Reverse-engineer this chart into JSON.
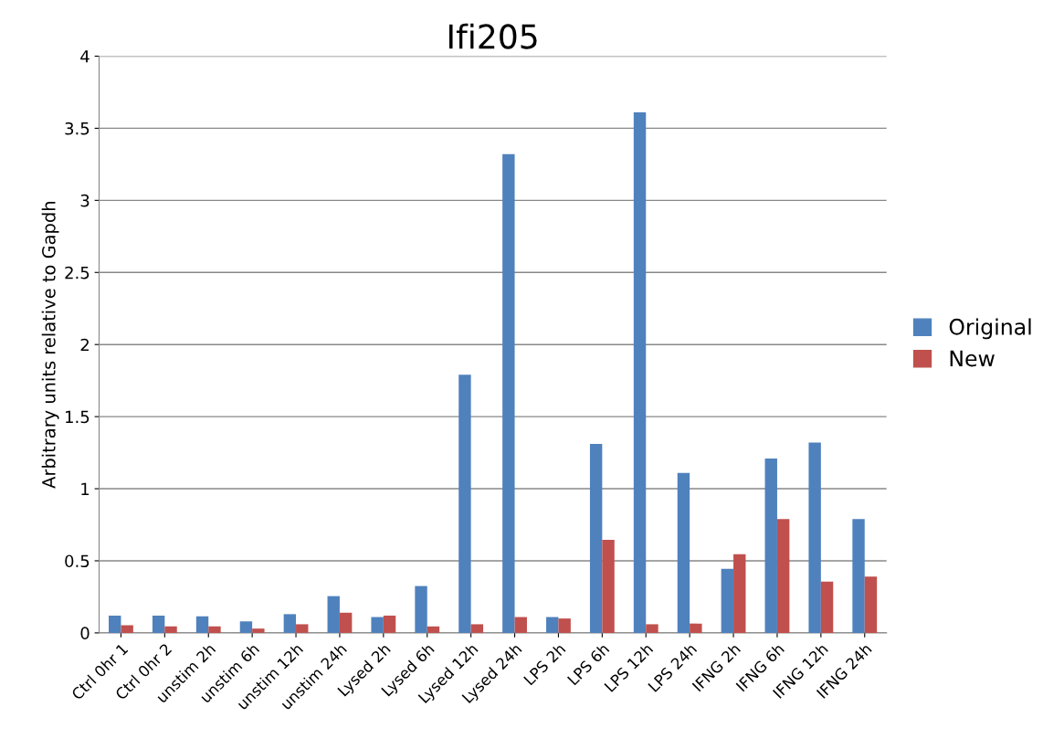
{
  "chart_data": {
    "type": "bar",
    "title": "Ifi205",
    "ylabel": "Arbitrary units relative to Gapdh",
    "categories": [
      "Ctrl 0hr 1",
      "Ctrl 0hr 2",
      "unstim 2h",
      "unstim 6h",
      "unstim 12h",
      "unstim 24h",
      "Lysed 2h",
      "Lysed 6h",
      "Lysed 12h",
      "Lysed 24h",
      "LPS 2h",
      "LPS 6h",
      "LPS 12h",
      "LPS 24h",
      "IFNG 2h",
      "IFNG 6h",
      "IFNG 12h",
      "IFNG 24h"
    ],
    "series": [
      {
        "name": "Original",
        "color": "#4f81bd",
        "values": [
          0.12,
          0.12,
          0.115,
          0.08,
          0.13,
          0.255,
          0.11,
          0.325,
          1.79,
          3.32,
          0.11,
          1.31,
          3.61,
          1.11,
          0.445,
          1.21,
          1.32,
          0.79
        ]
      },
      {
        "name": "New",
        "color": "#c0504d",
        "values": [
          0.053,
          0.045,
          0.045,
          0.03,
          0.06,
          0.14,
          0.12,
          0.045,
          0.06,
          0.11,
          0.1,
          0.645,
          0.06,
          0.065,
          0.545,
          0.79,
          0.355,
          0.39
        ]
      }
    ],
    "ylim": [
      0,
      4
    ],
    "yticks": [
      0,
      0.5,
      1,
      1.5,
      2,
      2.5,
      3,
      3.5,
      4
    ],
    "grid": "y",
    "legend": "right"
  }
}
